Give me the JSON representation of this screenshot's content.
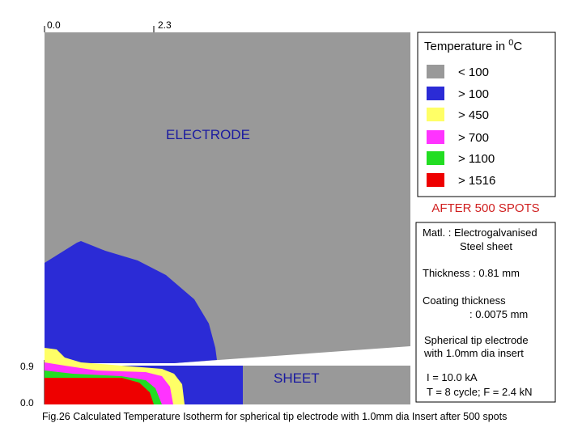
{
  "axes": {
    "top_ticks": [
      "0.0",
      "2.3"
    ],
    "left_ticks": [
      "0.9",
      "0.0"
    ]
  },
  "regions": {
    "electrode": "ELECTRODE",
    "sheet": "SHEET"
  },
  "legend": {
    "title": "Temperature in ",
    "superscript": "0",
    "unit": "C",
    "items": [
      {
        "label": "< 100",
        "color": "#999999"
      },
      {
        "label": "> 100",
        "color": "#2b2bd6"
      },
      {
        "label": "> 450",
        "color": "#ffff66"
      },
      {
        "label": "> 700",
        "color": "#ff33ff"
      },
      {
        "label": "> 1100",
        "color": "#22dd22"
      },
      {
        "label": "> 1516",
        "color": "#ee0000"
      }
    ]
  },
  "status": "AFTER 500 SPOTS",
  "info": [
    "Matl. : Electrogalvanised",
    "Steel sheet",
    "Thickness : 0.81 mm",
    "Coating thickness",
    ": 0.0075 mm",
    "Spherical tip electrode",
    "with 1.0mm dia insert",
    "I = 10.0 kA",
    "T = 8 cycle; F = 2.4 kN"
  ],
  "caption": "Fig.26 Calculated Temperature Isotherm for spherical tip electrode with 1.0mm dia Insert after 500 spots"
}
